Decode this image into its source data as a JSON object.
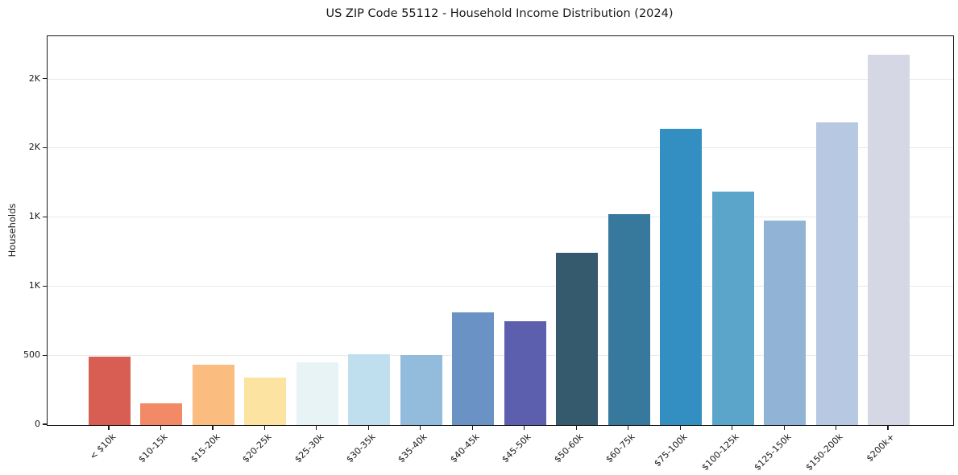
{
  "title": "US ZIP Code 55112 - Household Income Distribution (2024)",
  "chart_data": {
    "type": "bar",
    "title": "US ZIP Code 55112 - Household Income Distribution (2024)",
    "xlabel": "",
    "ylabel": "Households",
    "categories": [
      "< $10k",
      "$10-15k",
      "$15-20k",
      "$20-25k",
      "$25-30k",
      "$30-35k",
      "$35-40k",
      "$40-45k",
      "$45-50k",
      "$50-60k",
      "$60-75k",
      "$75-100k",
      "$100-125k",
      "$125-150k",
      "$150-200k",
      "$200k+"
    ],
    "values": [
      497,
      159,
      439,
      342,
      455,
      515,
      505,
      813,
      754,
      1246,
      1524,
      2140,
      1688,
      1478,
      2188,
      2678
    ],
    "bar_colors": [
      "#d85d52",
      "#f28a67",
      "#fbbc80",
      "#fde3a2",
      "#e8f3f6",
      "#c0dfee",
      "#93bcdc",
      "#6a92c4",
      "#5c5fae",
      "#365a6d",
      "#37799d",
      "#338fc2",
      "#5ba4ca",
      "#90b3d6",
      "#b7c8e2",
      "#d6d7e5"
    ],
    "ylim": [
      0,
      2812
    ],
    "yticks": [
      {
        "value": 0,
        "label": "0"
      },
      {
        "value": 500,
        "label": "500"
      },
      {
        "value": 1000,
        "label": "1K"
      },
      {
        "value": 1500,
        "label": "1K"
      },
      {
        "value": 2000,
        "label": "2K"
      },
      {
        "value": 2500,
        "label": "2K"
      }
    ],
    "grid": "horizontal",
    "legend": "none",
    "x_tick_rotation_deg": 45
  },
  "colors": {
    "background": "#ffffff",
    "gridline": "#e9e9e9",
    "axis": "#1a1a1a",
    "text": "#1a1a1a"
  }
}
